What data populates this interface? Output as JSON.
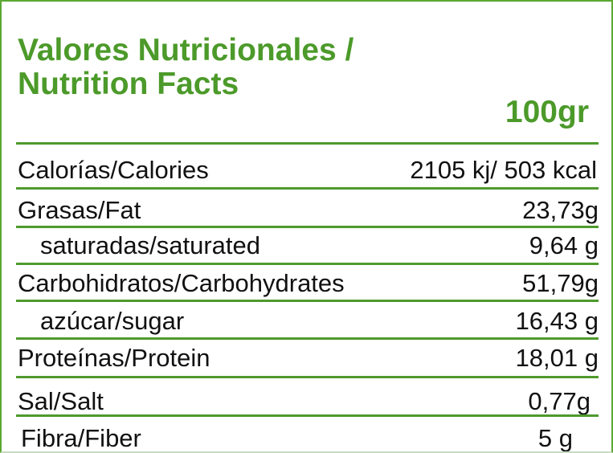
{
  "title": [
    "Valores Nutricionales /",
    "Nutrition Facts"
  ],
  "serving": "100gr",
  "accent_color": "#4c9a2a",
  "rows": [
    {
      "label": "Calorías/Calories",
      "value": "2105 kj/ 503 kcal"
    },
    {
      "label": "Grasas/Fat",
      "value": "23,73g"
    },
    {
      "label": "saturadas/saturated",
      "value": "9,64 g"
    },
    {
      "label": "Carbohidratos/Carbohydrates",
      "value": "51,79g"
    },
    {
      "label": "azúcar/sugar",
      "value": "16,43 g"
    },
    {
      "label": "Proteínas/Protein",
      "value": "18,01 g"
    },
    {
      "label": "Sal/Salt",
      "value": "0,77g"
    },
    {
      "label": "Fibra/Fiber",
      "value": "5 g"
    }
  ]
}
